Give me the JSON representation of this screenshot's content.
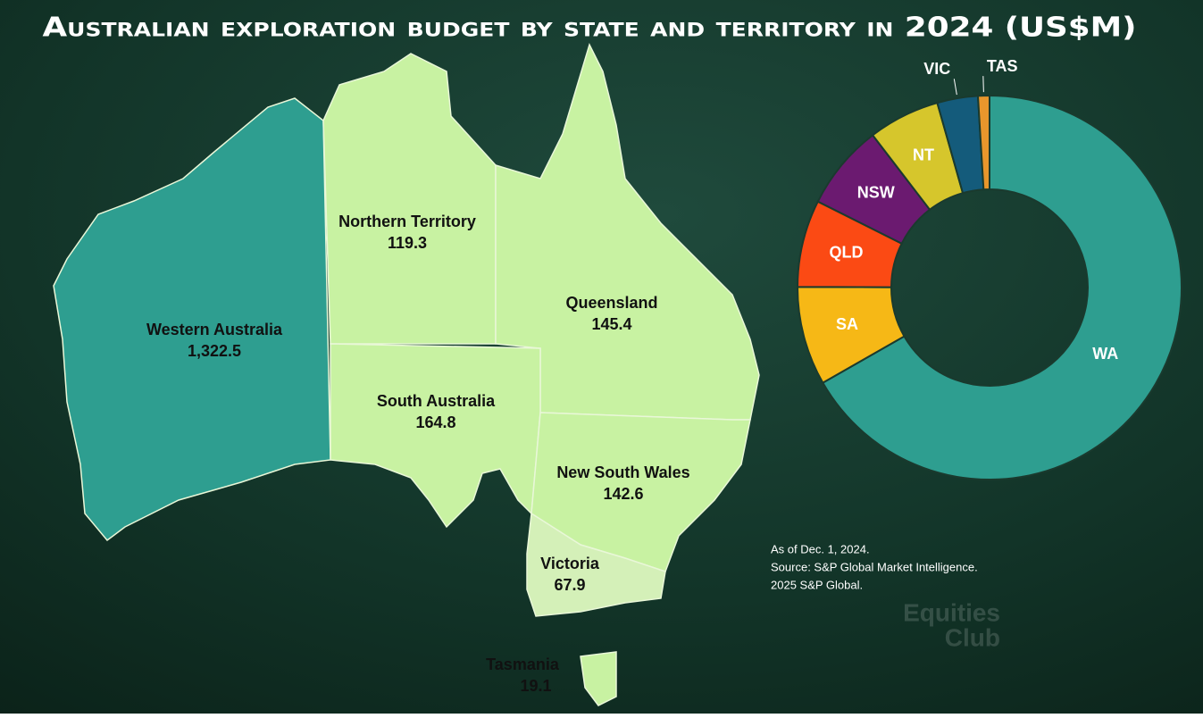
{
  "chart_data": {
    "type": "donut",
    "title": "Australian exploration budget by state and territory in 2024 (US$M)",
    "categories": [
      "WA",
      "SA",
      "QLD",
      "NSW",
      "NT",
      "VIC",
      "TAS"
    ],
    "labels": [
      "Western Australia",
      "South Australia",
      "Queensland",
      "New South Wales",
      "Northern Territory",
      "Victoria",
      "Tasmania"
    ],
    "values": [
      1322.5,
      164.8,
      145.4,
      142.6,
      119.3,
      67.9,
      19.1
    ],
    "value_labels": [
      "1,322.5",
      "164.8",
      "145.4",
      "142.6",
      "119.3",
      "67.9",
      "19.1"
    ],
    "colors": [
      "#2e9e90",
      "#f6b816",
      "#fb4a14",
      "#6b1a70",
      "#d6c62c",
      "#145b7b",
      "#e8962c"
    ],
    "notes": [
      "As of Dec. 1, 2024.",
      "Source: S&P Global Market Intelligence.",
      "2025 S&P Global."
    ],
    "watermark": [
      "Equities",
      "Club"
    ]
  }
}
